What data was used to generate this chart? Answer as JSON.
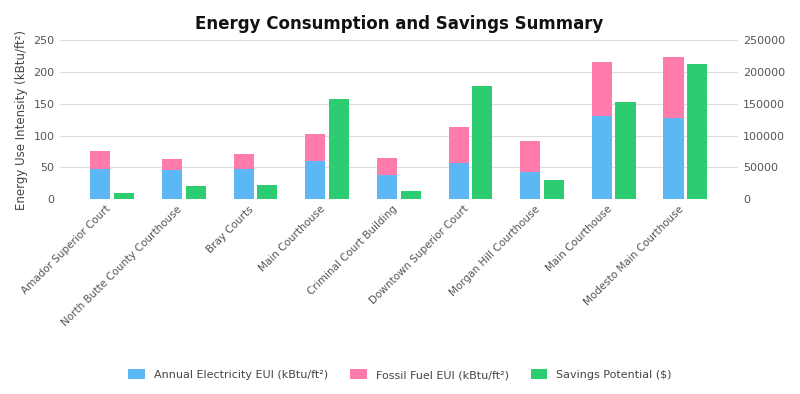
{
  "title": "Energy Consumption and Savings Summary",
  "categories": [
    "Amador Superior Court",
    "North Butte County Courthouse",
    "Bray Courts",
    "Main Courthouse",
    "Criminal Court Building",
    "Downtown Superior Court",
    "Morgan Hill Courthouse",
    "Main Courthouse",
    "Modesto Main Courthouse"
  ],
  "electricity_eui": [
    48,
    46,
    47,
    60,
    38,
    57,
    42,
    130,
    127
  ],
  "fossil_fuel_eui": [
    28,
    17,
    24,
    42,
    26,
    57,
    50,
    85,
    97
  ],
  "savings_potential": [
    10000,
    21000,
    22000,
    157000,
    13000,
    178000,
    30000,
    152000,
    213000
  ],
  "electricity_color": "#5BB8F5",
  "fossil_fuel_color": "#FF7BAC",
  "savings_color": "#2ECC71",
  "ylabel_left": "Energy Use Intensity (kBtu/ft²)",
  "ylim_left": [
    0,
    250
  ],
  "ylim_right": [
    0,
    250000
  ],
  "background_color": "#FFFFFF",
  "grid_color": "#DDDDDD",
  "legend_labels": [
    "Annual Electricity EUI (kBtu/ft²)",
    "Fossil Fuel EUI (kBtu/ft²)",
    "Savings Potential ($)"
  ]
}
